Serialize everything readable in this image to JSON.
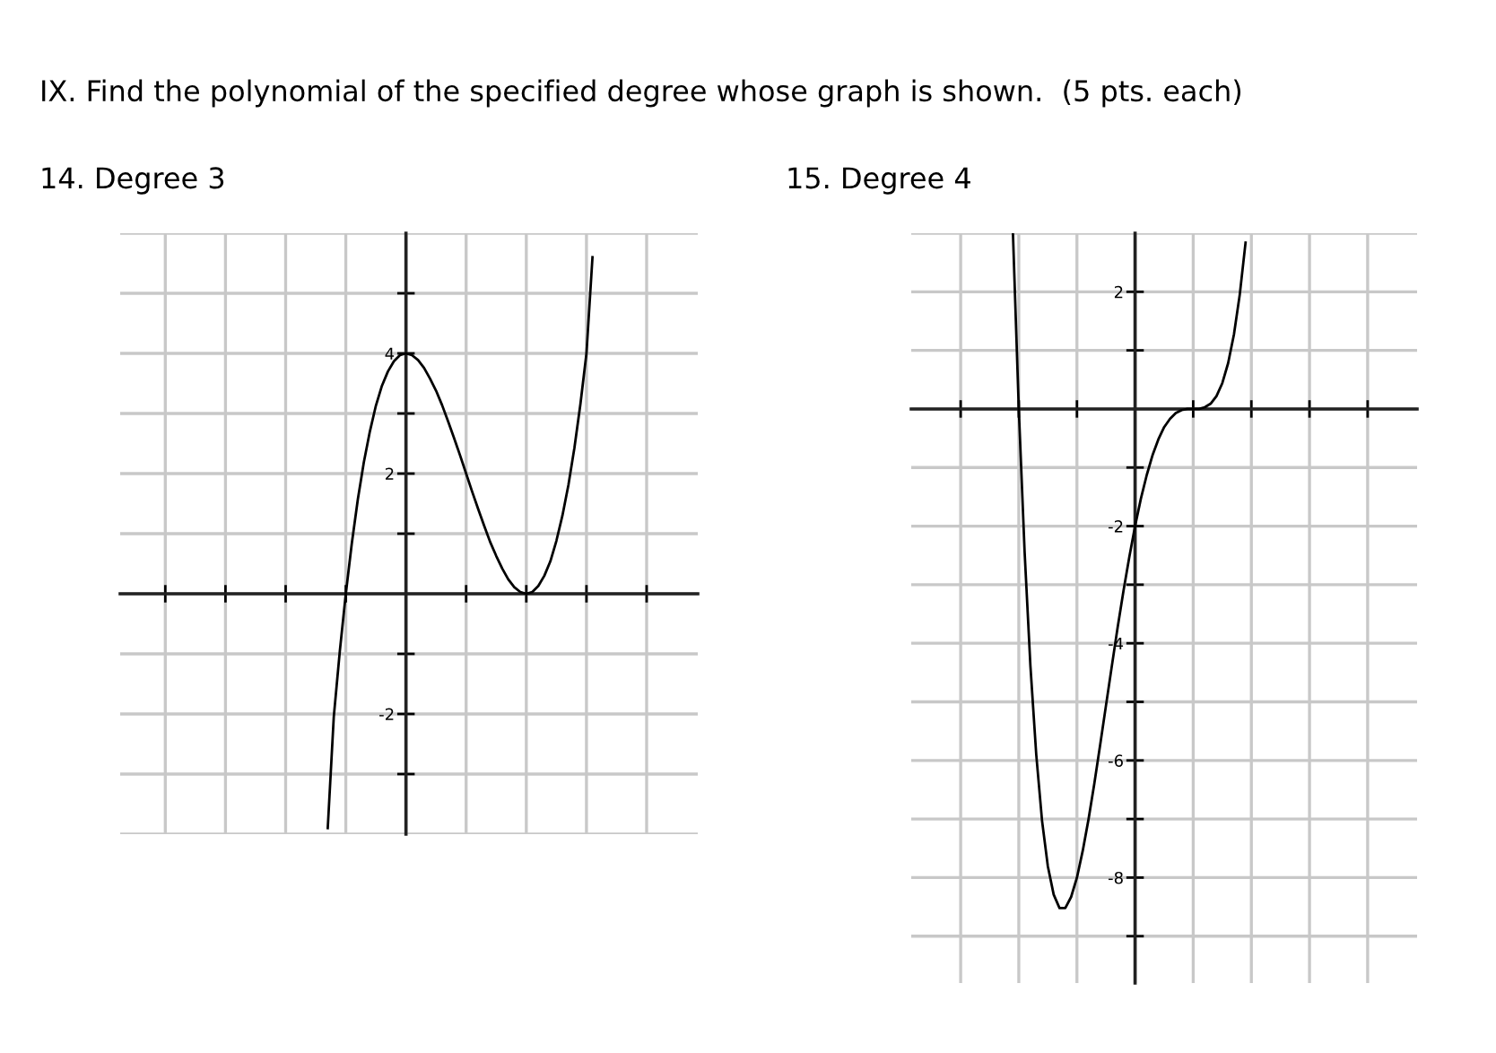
{
  "chart_data": [
    {
      "type": "line",
      "title": "14. Degree 3",
      "annotations": [
        "IX. Find the polynomial of the specified degree whose graph is shown.  (5 pts. each)"
      ],
      "categories": [
        null,
        null,
        null,
        null,
        null,
        null,
        null,
        null,
        null,
        null,
        null,
        null,
        null,
        null,
        null,
        null,
        null,
        null,
        null,
        null,
        null,
        null,
        null,
        null,
        null,
        null,
        null,
        null,
        null,
        null,
        null,
        null,
        null,
        null,
        null,
        null,
        null,
        null,
        null,
        null,
        null,
        null,
        null,
        null,
        null,
        null,
        null,
        null,
        null,
        null,
        null,
        null,
        null,
        null,
        null,
        null,
        null,
        null,
        null,
        null,
        null,
        null,
        null,
        null,
        null,
        null,
        null,
        null,
        null,
        null,
        null,
        null,
        null,
        null,
        null,
        null,
        null,
        null,
        null,
        null,
        null,
        null,
        null,
        null,
        null,
        null,
        null,
        null,
        null,
        null,
        null,
        null,
        null,
        null,
        null,
        null
      ],
      "series": [
        {
          "color": "#000000",
          "values": [
            null,
            null,
            null,
            null,
            null,
            null,
            null,
            null,
            null,
            null,
            null,
            null,
            null,
            null,
            null,
            null,
            null,
            null,
            null,
            null,
            null,
            null,
            null,
            null,
            null,
            null,
            null,
            null,
            null,
            null,
            null,
            null,
            null,
            null,
            -3.9,
            -2.05,
            -0.96,
            0,
            0.84,
            1.57,
            2.19,
            2.7,
            3.13,
            3.46,
            3.7,
            3.87,
            3.97,
            4.0,
            3.97,
            3.89,
            3.76,
            3.58,
            3.38,
            3.14,
            2.87,
            2.59,
            2.3,
            2.0,
            1.7,
            1.41,
            1.13,
            0.86,
            0.63,
            0.42,
            0.24,
            0.11,
            0.03,
            0,
            0.03,
            0.13,
            0.3,
            0.54,
            0.88,
            1.3,
            1.81,
            2.43,
            3.16,
            4.0,
            5.6,
            null,
            null,
            null,
            null,
            null,
            null,
            null,
            null,
            null,
            null,
            null,
            null,
            null,
            null,
            null,
            null,
            null
          ]
        }
      ],
      "ylim": [
        -4.0,
        6.0
      ],
      "yticks": [
        {
          "value": -3,
          "label": null
        },
        -2,
        {
          "value": -1,
          "label": null
        },
        {
          "value": 1,
          "label": null
        },
        2,
        {
          "value": 3,
          "label": null
        },
        4,
        {
          "value": 5,
          "label": null
        }
      ],
      "grid": true,
      "legend": false
    },
    {
      "type": "line",
      "title": "15. Degree 4",
      "categories": [
        null,
        null,
        null,
        null,
        null,
        null,
        null,
        null,
        null,
        null,
        null,
        null,
        null,
        null,
        null,
        null,
        null,
        null,
        null,
        null,
        null,
        null,
        null,
        null,
        null,
        null,
        null,
        null,
        null,
        null,
        null,
        null,
        null,
        null,
        null,
        null,
        null,
        null,
        null,
        null,
        null,
        null,
        null,
        null,
        null,
        null,
        null,
        null,
        null,
        null,
        null,
        null,
        null,
        null,
        null,
        null,
        null,
        null,
        null,
        null,
        null,
        null,
        null,
        null,
        null,
        null,
        null,
        null,
        null,
        null,
        null,
        null,
        null,
        null,
        null,
        null,
        null,
        null,
        null,
        null,
        null,
        null,
        null,
        null,
        null,
        null,
        null
      ],
      "series": [
        {
          "color": "#000000",
          "values": [
            null,
            null,
            null,
            null,
            null,
            null,
            null,
            null,
            null,
            null,
            null,
            null,
            null,
            null,
            null,
            null,
            null,
            2.98,
            0,
            -2.44,
            -4.39,
            -5.9,
            -7.03,
            -7.81,
            -8.29,
            -8.52,
            -8.52,
            -8.33,
            -8.0,
            -7.54,
            -7.0,
            -6.39,
            -5.73,
            -5.06,
            -4.39,
            -3.73,
            -3.11,
            -2.53,
            -2.0,
            -1.53,
            -1.13,
            -0.79,
            -0.52,
            -0.31,
            -0.17,
            -0.07,
            -0.02,
            0,
            0,
            0,
            0.03,
            0.09,
            0.22,
            0.44,
            0.78,
            1.27,
            1.95,
            2.84,
            null,
            null,
            null,
            null,
            null,
            null,
            null,
            null,
            null,
            null,
            null,
            null,
            null,
            null,
            null,
            null,
            null,
            null,
            null,
            null,
            null,
            null,
            null,
            null,
            null,
            null,
            null,
            null,
            null
          ]
        }
      ],
      "ylim": [
        -9.8,
        3.0
      ],
      "yticks": [
        {
          "value": -9,
          "label": null
        },
        -8,
        {
          "value": -7,
          "label": null
        },
        -6,
        {
          "value": -5,
          "label": null
        },
        -4,
        {
          "value": -3,
          "label": null
        },
        -2,
        {
          "value": -1,
          "label": null
        },
        {
          "value": 1,
          "label": null
        },
        2
      ],
      "grid": true,
      "legend": false
    }
  ]
}
